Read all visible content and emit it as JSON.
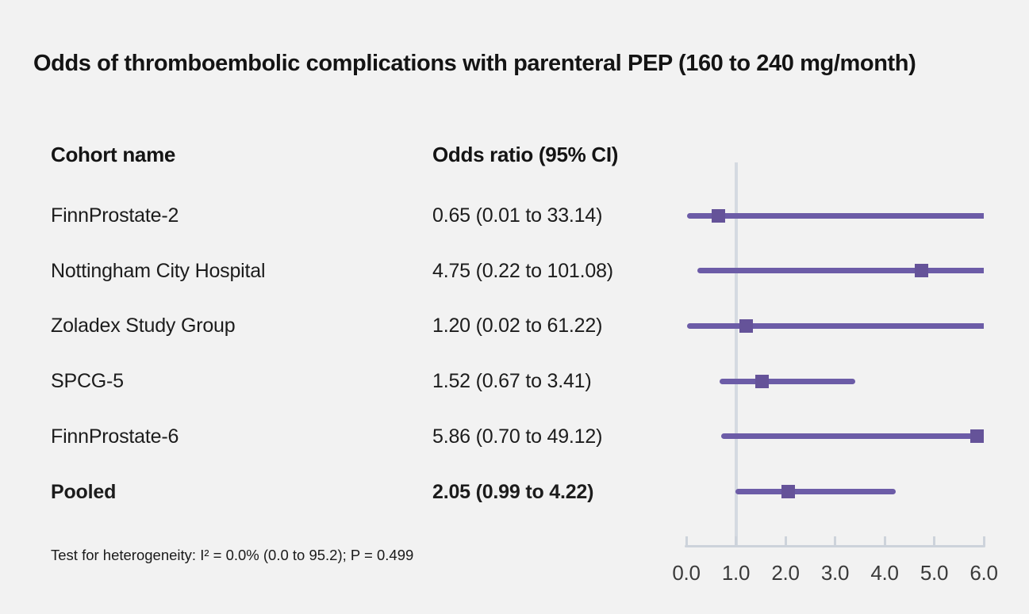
{
  "chart_data": {
    "type": "forest",
    "title": "Odds of thromboembolic complications with parenteral PEP (160 to 240 mg/month)",
    "columns": {
      "cohort": "Cohort name",
      "odds_ratio": "Odds ratio (95% CI)"
    },
    "rows": [
      {
        "cohort": "FinnProstate-2",
        "odds_ratio_label": "0.65 (0.01 to 33.14)",
        "or": 0.65,
        "ci_low": 0.01,
        "ci_high": 33.14,
        "pooled": false
      },
      {
        "cohort": "Nottingham City Hospital",
        "odds_ratio_label": "4.75 (0.22 to 101.08)",
        "or": 4.75,
        "ci_low": 0.22,
        "ci_high": 101.08,
        "pooled": false
      },
      {
        "cohort": "Zoladex Study Group",
        "odds_ratio_label": "1.20 (0.02 to 61.22)",
        "or": 1.2,
        "ci_low": 0.02,
        "ci_high": 61.22,
        "pooled": false
      },
      {
        "cohort": "SPCG-5",
        "odds_ratio_label": "1.52 (0.67 to 3.41)",
        "or": 1.52,
        "ci_low": 0.67,
        "ci_high": 3.41,
        "pooled": false
      },
      {
        "cohort": "FinnProstate-6",
        "odds_ratio_label": "5.86 (0.70 to 49.12)",
        "or": 5.86,
        "ci_low": 0.7,
        "ci_high": 49.12,
        "pooled": false
      },
      {
        "cohort": "Pooled",
        "odds_ratio_label": "2.05 (0.99 to 4.22)",
        "or": 2.05,
        "ci_low": 0.99,
        "ci_high": 4.22,
        "pooled": true
      }
    ],
    "footnote": "Test for heterogeneity: I² = 0.0% (0.0 to 95.2); P = 0.499",
    "xaxis": {
      "min": 0,
      "max": 6,
      "tick_labels": [
        "0.0",
        "1.0",
        "2.0",
        "3.0",
        "4.0",
        "5.0",
        "6.0"
      ],
      "reference_line": 1.0
    },
    "colors": {
      "interval_line": "#6c5ca7",
      "marker": "#655399",
      "reference_line": "#d5dae1",
      "axis": "#cdd3db",
      "background": "#f2f2f2"
    }
  }
}
